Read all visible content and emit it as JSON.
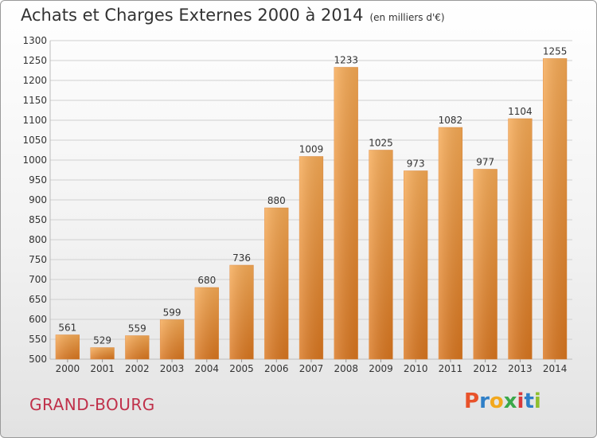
{
  "header": {
    "title": "Achats et Charges Externes 2000 à 2014",
    "unit": "(en milliers d'€)"
  },
  "footer": {
    "commune": "GRAND-BOURG",
    "logo": "Proxiti",
    "logo_colors": [
      "#e8522a",
      "#2f7fc7",
      "#f2a81d",
      "#3aa84a",
      "#d8393a",
      "#2f7fc7",
      "#8fbf2e"
    ]
  },
  "chart_data": {
    "type": "bar",
    "title": "Achats et Charges Externes 2000 à 2014",
    "xlabel": "",
    "ylabel": "",
    "categories": [
      "2000",
      "2001",
      "2002",
      "2003",
      "2004",
      "2005",
      "2006",
      "2007",
      "2008",
      "2009",
      "2010",
      "2011",
      "2012",
      "2013",
      "2014"
    ],
    "values": [
      561,
      529,
      559,
      599,
      680,
      736,
      880,
      1009,
      1233,
      1025,
      973,
      1082,
      977,
      1104,
      1255
    ],
    "ylim": [
      500,
      1300
    ],
    "ytick_step": 50,
    "grid": true,
    "bar_color": "#f0a04b"
  }
}
